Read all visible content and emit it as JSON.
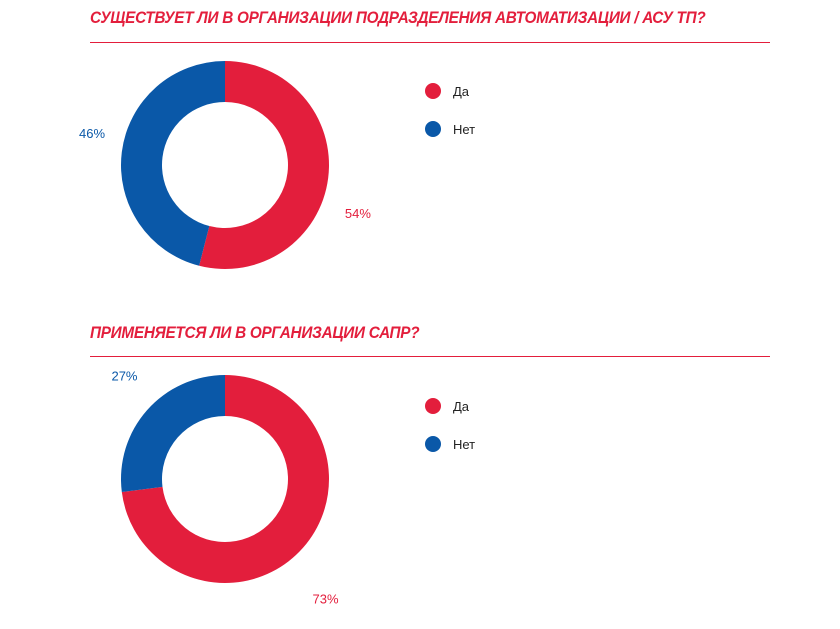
{
  "colors": {
    "yes": "#e31e3c",
    "no": "#0a58a8"
  },
  "chart_data": [
    {
      "type": "pie",
      "donut": true,
      "title": "СУЩЕСТВУЕТ ЛИ В ОРГАНИЗАЦИИ ПОДРАЗДЕЛЕНИЯ АВТОМАТИЗАЦИИ / АСУ ТП?",
      "categories": [
        "Да",
        "Нет"
      ],
      "values": [
        54,
        46
      ],
      "labels": [
        "54%",
        "46%"
      ],
      "legend": "right"
    },
    {
      "type": "pie",
      "donut": true,
      "title": "ПРИМЕНЯЕТСЯ ЛИ В ОРГАНИЗАЦИИ САПР?",
      "categories": [
        "Да",
        "Нет"
      ],
      "values": [
        73,
        27
      ],
      "labels": [
        "73%",
        "27%"
      ],
      "legend": "right"
    }
  ]
}
